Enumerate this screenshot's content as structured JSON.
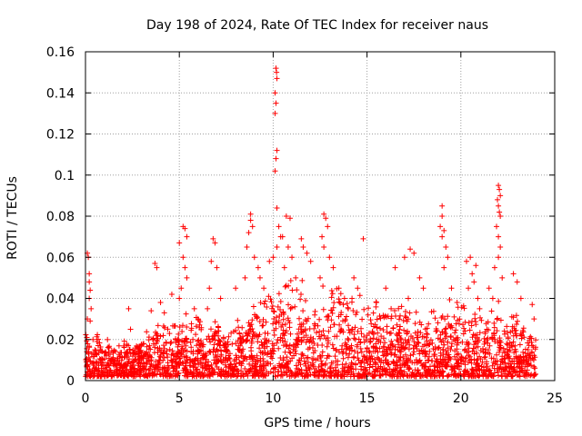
{
  "chart_data": {
    "type": "scatter",
    "title": "Day 198 of 2024, Rate Of TEC Index for receiver naus",
    "xlabel": "GPS time / hours",
    "ylabel": "ROTI / TECUs",
    "xlim": [
      0,
      25
    ],
    "ylim": [
      0,
      0.16
    ],
    "x_ticks": [
      0,
      5,
      10,
      15,
      20,
      25
    ],
    "x_tick_labels": [
      "0",
      "5",
      "10",
      "15",
      "20",
      "25"
    ],
    "y_ticks": [
      0,
      0.02,
      0.04,
      0.06,
      0.08,
      0.1,
      0.12,
      0.14,
      0.16
    ],
    "y_tick_labels": [
      "0",
      "0.02",
      "0.04",
      "0.06",
      "0.08",
      "0.1",
      "0.12",
      "0.14",
      "0.16"
    ],
    "grid": true,
    "marker": "plus",
    "color": "#ff0000",
    "series": [
      {
        "name": "ROTI",
        "points": [
          [
            0.1,
            0.062
          ],
          [
            0.15,
            0.06
          ],
          [
            0.2,
            0.052
          ],
          [
            0.2,
            0.048
          ],
          [
            0.25,
            0.044
          ],
          [
            0.2,
            0.04
          ],
          [
            0.3,
            0.035
          ],
          [
            0.1,
            0.03
          ],
          [
            0.25,
            0.029
          ],
          [
            0.4,
            0.02
          ],
          [
            0.5,
            0.015
          ],
          [
            2.3,
            0.035
          ],
          [
            2.4,
            0.025
          ],
          [
            3.7,
            0.057
          ],
          [
            3.8,
            0.055
          ],
          [
            3.5,
            0.034
          ],
          [
            4.0,
            0.038
          ],
          [
            4.2,
            0.033
          ],
          [
            4.6,
            0.042
          ],
          [
            5.0,
            0.067
          ],
          [
            5.2,
            0.075
          ],
          [
            5.3,
            0.074
          ],
          [
            5.4,
            0.07
          ],
          [
            5.2,
            0.06
          ],
          [
            5.3,
            0.055
          ],
          [
            5.4,
            0.05
          ],
          [
            5.1,
            0.045
          ],
          [
            5.0,
            0.04
          ],
          [
            5.8,
            0.035
          ],
          [
            6.0,
            0.03
          ],
          [
            6.8,
            0.069
          ],
          [
            6.9,
            0.067
          ],
          [
            6.7,
            0.058
          ],
          [
            7.0,
            0.055
          ],
          [
            6.6,
            0.045
          ],
          [
            7.2,
            0.04
          ],
          [
            6.5,
            0.035
          ],
          [
            8.0,
            0.045
          ],
          [
            8.5,
            0.05
          ],
          [
            8.8,
            0.081
          ],
          [
            8.8,
            0.078
          ],
          [
            8.9,
            0.075
          ],
          [
            8.7,
            0.072
          ],
          [
            8.6,
            0.065
          ],
          [
            9.0,
            0.06
          ],
          [
            9.2,
            0.055
          ],
          [
            9.3,
            0.05
          ],
          [
            9.5,
            0.045
          ],
          [
            10.15,
            0.152
          ],
          [
            10.18,
            0.15
          ],
          [
            10.2,
            0.147
          ],
          [
            10.1,
            0.14
          ],
          [
            10.15,
            0.135
          ],
          [
            10.1,
            0.13
          ],
          [
            10.2,
            0.112
          ],
          [
            10.15,
            0.108
          ],
          [
            10.1,
            0.102
          ],
          [
            10.2,
            0.084
          ],
          [
            10.3,
            0.075
          ],
          [
            10.4,
            0.07
          ],
          [
            10.2,
            0.065
          ],
          [
            10.0,
            0.06
          ],
          [
            9.8,
            0.058
          ],
          [
            10.7,
            0.08
          ],
          [
            10.9,
            0.079
          ],
          [
            10.5,
            0.07
          ],
          [
            10.8,
            0.065
          ],
          [
            11.0,
            0.06
          ],
          [
            10.6,
            0.055
          ],
          [
            11.2,
            0.05
          ],
          [
            11.5,
            0.069
          ],
          [
            11.6,
            0.065
          ],
          [
            11.8,
            0.062
          ],
          [
            12.0,
            0.058
          ],
          [
            12.7,
            0.081
          ],
          [
            12.8,
            0.079
          ],
          [
            12.9,
            0.075
          ],
          [
            12.6,
            0.07
          ],
          [
            12.7,
            0.065
          ],
          [
            13.0,
            0.06
          ],
          [
            13.2,
            0.055
          ],
          [
            12.5,
            0.05
          ],
          [
            13.5,
            0.045
          ],
          [
            13.8,
            0.04
          ],
          [
            14.0,
            0.035
          ],
          [
            14.2,
            0.04
          ],
          [
            14.5,
            0.045
          ],
          [
            14.8,
            0.069
          ],
          [
            14.3,
            0.05
          ],
          [
            15.5,
            0.038
          ],
          [
            16.0,
            0.045
          ],
          [
            16.5,
            0.055
          ],
          [
            17.0,
            0.06
          ],
          [
            17.3,
            0.064
          ],
          [
            17.5,
            0.062
          ],
          [
            17.8,
            0.05
          ],
          [
            18.0,
            0.045
          ],
          [
            17.2,
            0.04
          ],
          [
            19.0,
            0.085
          ],
          [
            19.0,
            0.08
          ],
          [
            18.9,
            0.075
          ],
          [
            19.1,
            0.073
          ],
          [
            19.0,
            0.07
          ],
          [
            19.2,
            0.065
          ],
          [
            19.3,
            0.06
          ],
          [
            19.1,
            0.055
          ],
          [
            19.5,
            0.045
          ],
          [
            19.8,
            0.038
          ],
          [
            20.5,
            0.06
          ],
          [
            20.3,
            0.058
          ],
          [
            20.8,
            0.056
          ],
          [
            20.6,
            0.052
          ],
          [
            20.7,
            0.048
          ],
          [
            20.4,
            0.045
          ],
          [
            20.9,
            0.04
          ],
          [
            21.0,
            0.035
          ],
          [
            22.0,
            0.095
          ],
          [
            22.05,
            0.093
          ],
          [
            22.1,
            0.09
          ],
          [
            21.95,
            0.088
          ],
          [
            22.0,
            0.085
          ],
          [
            22.05,
            0.082
          ],
          [
            22.1,
            0.08
          ],
          [
            21.9,
            0.075
          ],
          [
            22.0,
            0.07
          ],
          [
            22.1,
            0.065
          ],
          [
            22.0,
            0.06
          ],
          [
            21.8,
            0.055
          ],
          [
            22.2,
            0.05
          ],
          [
            21.5,
            0.045
          ],
          [
            21.7,
            0.04
          ],
          [
            22.8,
            0.052
          ],
          [
            23.0,
            0.048
          ],
          [
            23.2,
            0.04
          ],
          [
            23.8,
            0.037
          ],
          [
            23.9,
            0.03
          ]
        ]
      }
    ],
    "dense_band": {
      "description": "dense cloud of points at every epoch",
      "x_range": [
        0,
        24
      ],
      "envelope_x": [
        0,
        1,
        2,
        3,
        4,
        5,
        6,
        7,
        8,
        9,
        10,
        11,
        12,
        13,
        14,
        15,
        16,
        17,
        18,
        19,
        20,
        21,
        22,
        23,
        24
      ],
      "envelope_max": [
        0.025,
        0.02,
        0.018,
        0.02,
        0.025,
        0.03,
        0.028,
        0.025,
        0.028,
        0.035,
        0.045,
        0.045,
        0.04,
        0.042,
        0.04,
        0.035,
        0.035,
        0.033,
        0.03,
        0.035,
        0.035,
        0.03,
        0.035,
        0.03,
        0.02
      ],
      "min": 0.002
    }
  }
}
